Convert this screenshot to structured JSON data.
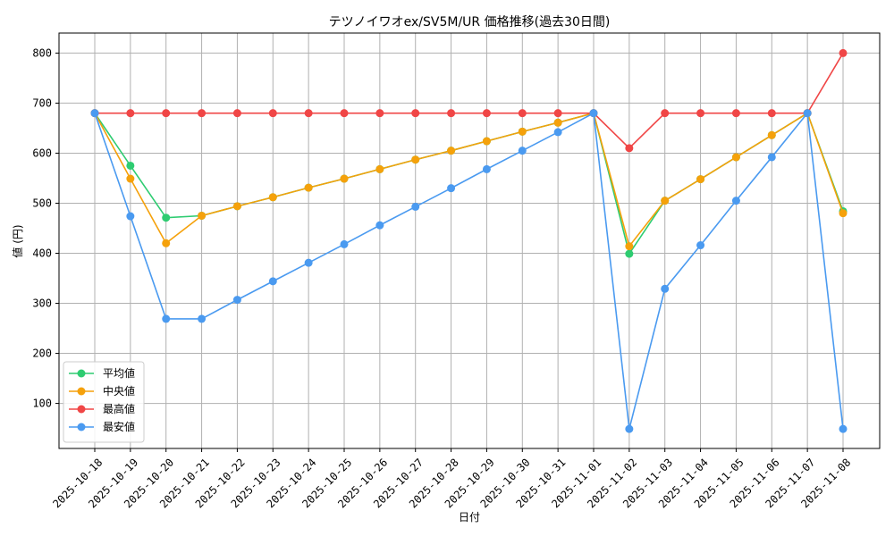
{
  "chart_data": {
    "type": "line",
    "title": "テツノイワオex/SV5M/UR 価格推移(過去30日間)",
    "xlabel": "日付",
    "ylabel": "値 (円)",
    "ylim": [
      10,
      840
    ],
    "yticks": [
      100,
      200,
      300,
      400,
      500,
      600,
      700,
      800
    ],
    "grid": true,
    "legend_position": "lower-left",
    "x": [
      "2025-10-18",
      "2025-10-19",
      "2025-10-20",
      "2025-10-21",
      "2025-10-22",
      "2025-10-23",
      "2025-10-24",
      "2025-10-25",
      "2025-10-26",
      "2025-10-27",
      "2025-10-28",
      "2025-10-29",
      "2025-10-30",
      "2025-10-31",
      "2025-11-01",
      "2025-11-02",
      "2025-11-03",
      "2025-11-04",
      "2025-11-05",
      "2025-11-06",
      "2025-11-07",
      "2025-11-08"
    ],
    "series": [
      {
        "name": "平均値",
        "color": "#2ecc71",
        "values": [
          680,
          575,
          471,
          475,
          494,
          512,
          531,
          549,
          568,
          587,
          605,
          624,
          643,
          661,
          680,
          399,
          505,
          548,
          592,
          636,
          680,
          484
        ]
      },
      {
        "name": "中央値",
        "color": "#f5a10b",
        "values": [
          680,
          549,
          420,
          475,
          494,
          512,
          531,
          549,
          568,
          587,
          605,
          624,
          643,
          661,
          680,
          414,
          505,
          548,
          592,
          636,
          680,
          480
        ]
      },
      {
        "name": "最高値",
        "color": "#f04646",
        "values": [
          680,
          680,
          680,
          680,
          680,
          680,
          680,
          680,
          680,
          680,
          680,
          680,
          680,
          680,
          680,
          610,
          680,
          680,
          680,
          680,
          680,
          800
        ]
      },
      {
        "name": "最安値",
        "color": "#4a9af0",
        "values": [
          680,
          474,
          269,
          269,
          307,
          344,
          381,
          418,
          456,
          493,
          530,
          568,
          605,
          642,
          680,
          49,
          329,
          416,
          505,
          592,
          680,
          49
        ]
      }
    ]
  }
}
